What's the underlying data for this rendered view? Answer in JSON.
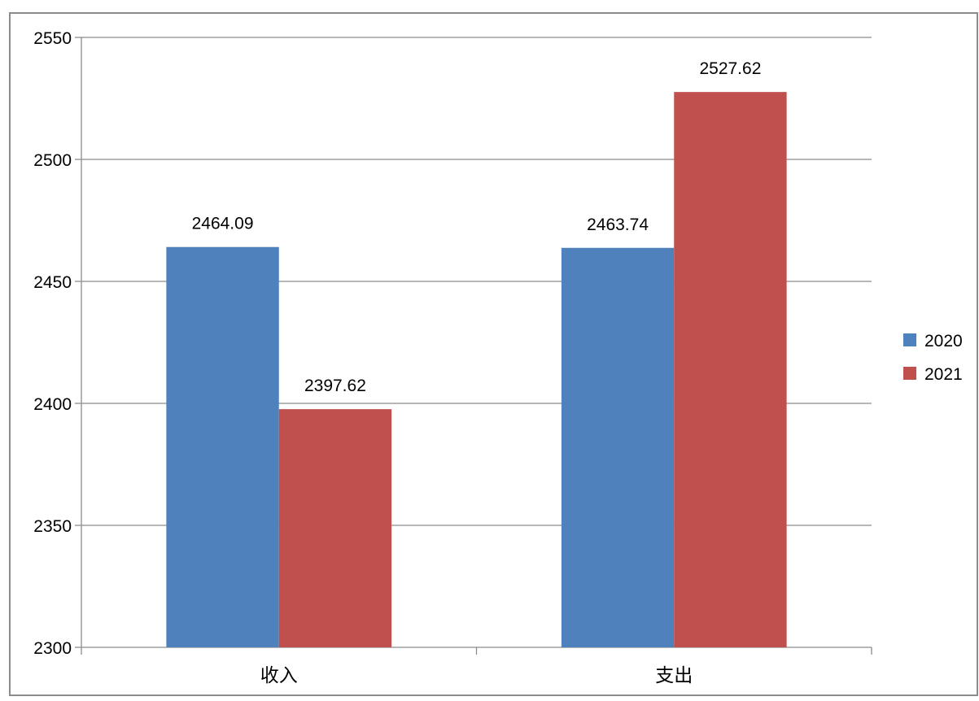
{
  "chart_data": {
    "type": "bar",
    "categories": [
      "收入",
      "支出"
    ],
    "series": [
      {
        "name": "2020",
        "values": [
          2464.09,
          2463.74
        ],
        "labels": [
          "2464.09",
          "2463.74"
        ],
        "color": "#4F81BD"
      },
      {
        "name": "2021",
        "values": [
          2397.62,
          2527.62
        ],
        "labels": [
          "2397.62",
          "2527.62"
        ],
        "color": "#C0504D"
      }
    ],
    "ylim": [
      2300,
      2550
    ],
    "yticks": [
      2300,
      2350,
      2400,
      2450,
      2500,
      2550
    ],
    "ytick_labels": [
      "2300",
      "2350",
      "2400",
      "2450",
      "2500",
      "2550"
    ],
    "grid": true,
    "legend_position": "right",
    "title": "",
    "xlabel": "",
    "ylabel": ""
  }
}
